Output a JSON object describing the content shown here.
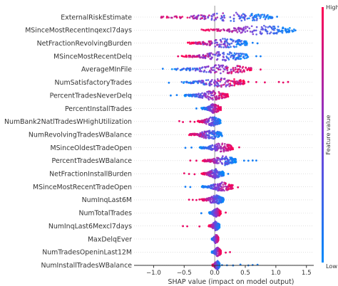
{
  "chart_data": {
    "type": "scatter",
    "subtype": "shap-beeswarm",
    "xlabel": "SHAP value (impact on model output)",
    "x_ticks": [
      -1.0,
      -0.5,
      0.0,
      0.5,
      1.0,
      1.5
    ],
    "x_tick_labels": [
      "−1.0",
      "−0.5",
      "0.0",
      "0.5",
      "1.0",
      "1.5"
    ],
    "xlim": [
      -1.32,
      1.62
    ],
    "zero_line": 0.0,
    "colorbar": {
      "title": "Feature value",
      "high_label": "High",
      "low_label": "Low",
      "low_color": "#008afb",
      "mid_color": "#7c3bd6",
      "high_color": "#ff0051"
    },
    "features": [
      {
        "name": "ExternalRiskEstimate",
        "min": -0.9,
        "max": 0.95,
        "low_side": "right",
        "spread": 0.8,
        "outliers": [
          -0.78,
          -0.62,
          1.02
        ]
      },
      {
        "name": "MSinceMostRecentInqexcl7days",
        "min": -0.22,
        "max": 1.3,
        "low_side": "right",
        "spread": 0.25,
        "outliers": [
          1.1,
          1.22,
          1.32
        ]
      },
      {
        "name": "NetFractionRevolvingBurden",
        "min": -0.45,
        "max": 0.55,
        "low_side": "right",
        "spread": 0.7,
        "outliers": [
          0.62,
          0.7
        ]
      },
      {
        "name": "MSinceMostRecentDelq",
        "min": -0.55,
        "max": 0.55,
        "low_side": "right",
        "spread": 0.6,
        "outliers": [
          -0.6,
          0.68,
          0.75
        ]
      },
      {
        "name": "AverageMInFile",
        "min": -0.7,
        "max": 0.6,
        "low_side": "left",
        "spread": 0.7,
        "outliers": [
          -0.85,
          0.75
        ]
      },
      {
        "name": "NumSatisfactoryTrades",
        "min": -0.55,
        "max": 0.5,
        "low_side": "left",
        "spread": 0.8,
        "outliers": [
          -0.75,
          0.55,
          0.68,
          0.82,
          1.05,
          1.12,
          1.2
        ]
      },
      {
        "name": "PercentTradesNeverDelq",
        "min": -0.5,
        "max": 0.22,
        "low_side": "left",
        "spread": 0.55,
        "outliers": [
          -0.72,
          -0.62
        ]
      },
      {
        "name": "PercentInstallTrades",
        "min": -0.22,
        "max": 0.1,
        "low_side": "left",
        "spread": 0.45,
        "outliers": [
          -0.3
        ]
      },
      {
        "name": "NumBank2NatlTradesWHighUtilization",
        "min": -0.28,
        "max": 0.1,
        "low_side": "right",
        "spread": 0.5,
        "outliers": [
          -0.58,
          -0.52,
          -0.4,
          -0.33
        ]
      },
      {
        "name": "NumRevolvingTradesWBalance",
        "min": -0.42,
        "max": 0.12,
        "low_side": "right",
        "spread": 0.6,
        "outliers": []
      },
      {
        "name": "MSinceOldestTradeOpen",
        "min": -0.25,
        "max": 0.3,
        "low_side": "left",
        "spread": 0.3,
        "outliers": [
          -0.48,
          -0.38,
          0.4
        ]
      },
      {
        "name": "PercentTradesWBalance",
        "min": -0.2,
        "max": 0.35,
        "low_side": "right",
        "spread": 0.5,
        "outliers": [
          -0.4,
          -0.3,
          0.48,
          0.55,
          0.62,
          0.68
        ]
      },
      {
        "name": "NetFractionInstallBurden",
        "min": -0.22,
        "max": 0.15,
        "low_side": "right",
        "spread": 0.55,
        "outliers": [
          -0.5,
          -0.42,
          -0.33,
          0.22
        ]
      },
      {
        "name": "MSinceMostRecentTradeOpen",
        "min": -0.22,
        "max": 0.3,
        "low_side": "left",
        "spread": 0.4,
        "outliers": [
          -0.48,
          -0.4,
          0.38
        ]
      },
      {
        "name": "NumInqLast6M",
        "min": -0.22,
        "max": 0.15,
        "low_side": "right",
        "spread": 0.4,
        "outliers": [
          -0.42,
          -0.36,
          -0.3,
          -0.25
        ]
      },
      {
        "name": "NumTotalTrades",
        "min": -0.1,
        "max": 0.1,
        "low_side": "left",
        "spread": 0.35,
        "outliers": [
          -0.22,
          0.18
        ]
      },
      {
        "name": "NumInqLast6Mexcl7days",
        "min": -0.1,
        "max": 0.08,
        "low_side": "right",
        "spread": 0.35,
        "outliers": [
          -0.52,
          -0.45,
          -0.25
        ]
      },
      {
        "name": "MaxDelqEver",
        "min": -0.05,
        "max": 0.06,
        "low_side": "left",
        "spread": 0.4,
        "outliers": []
      },
      {
        "name": "NumTradesOpeninLast12M",
        "min": -0.05,
        "max": 0.1,
        "low_side": "left",
        "spread": 0.35,
        "outliers": [
          0.18,
          0.25
        ]
      },
      {
        "name": "NumInstallTradesWBalance",
        "min": -0.04,
        "max": 0.08,
        "low_side": "right",
        "spread": 0.35,
        "outliers": [
          0.12,
          0.2,
          0.3,
          0.42,
          0.55,
          0.62,
          0.7
        ]
      }
    ]
  }
}
